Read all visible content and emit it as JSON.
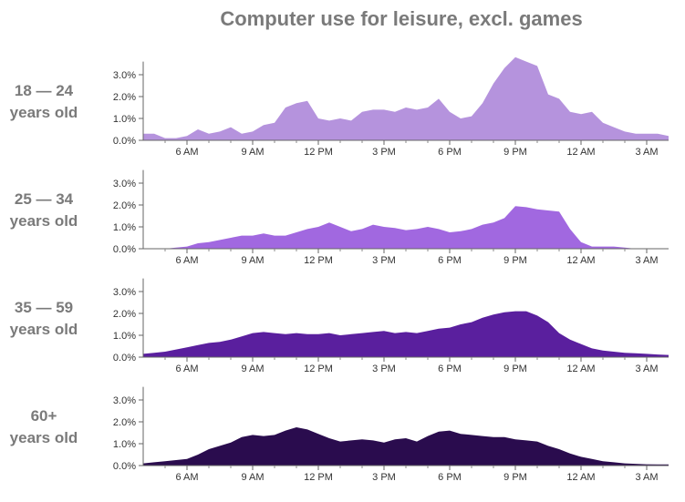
{
  "title": "Computer use for leisure, excl. games",
  "chart_data": {
    "type": "area",
    "title": "Computer use for leisure, excl. games",
    "x_start_label": "4 AM",
    "x_ticks": [
      "6 AM",
      "9 AM",
      "12 PM",
      "3 PM",
      "6 PM",
      "9 PM",
      "12 AM",
      "3 AM"
    ],
    "y_ticks": [
      "0.0%",
      "1.0%",
      "2.0%",
      "3.0%"
    ],
    "ylim": [
      0,
      4
    ],
    "x_range_hours": [
      4,
      28
    ],
    "grid": false,
    "colors": [
      "#b593dd",
      "#a168e0",
      "#5a1f9e",
      "#2a0c4e"
    ],
    "panels": [
      {
        "label_line1": "18 — 24",
        "label_line2": "years old",
        "x": [
          4,
          4.5,
          5,
          5.5,
          6,
          6.5,
          7,
          7.5,
          8,
          8.5,
          9,
          9.5,
          10,
          10.5,
          11,
          11.5,
          12,
          12.5,
          13,
          13.5,
          14,
          14.5,
          15,
          15.5,
          16,
          16.5,
          17,
          17.5,
          18,
          18.5,
          19,
          19.5,
          20,
          20.5,
          21,
          21.5,
          22,
          22.5,
          23,
          23.5,
          24,
          24.5,
          25,
          25.5,
          26,
          26.5,
          27,
          27.5,
          28
        ],
        "y": [
          0.3,
          0.3,
          0.1,
          0.1,
          0.2,
          0.5,
          0.3,
          0.4,
          0.6,
          0.3,
          0.4,
          0.7,
          0.8,
          1.5,
          1.7,
          1.8,
          1.0,
          0.9,
          1.0,
          0.9,
          1.3,
          1.4,
          1.4,
          1.3,
          1.5,
          1.4,
          1.5,
          1.9,
          1.3,
          1.0,
          1.1,
          1.7,
          2.6,
          3.3,
          3.8,
          3.6,
          3.4,
          2.1,
          1.9,
          1.3,
          1.2,
          1.3,
          0.8,
          0.6,
          0.4,
          0.3,
          0.3,
          0.3,
          0.2
        ]
      },
      {
        "label_line1": "25 — 34",
        "label_line2": "years old",
        "x": [
          4,
          4.5,
          5,
          5.5,
          6,
          6.5,
          7,
          7.5,
          8,
          8.5,
          9,
          9.5,
          10,
          10.5,
          11,
          11.5,
          12,
          12.5,
          13,
          13.5,
          14,
          14.5,
          15,
          15.5,
          16,
          16.5,
          17,
          17.5,
          18,
          18.5,
          19,
          19.5,
          20,
          20.5,
          21,
          21.5,
          22,
          22.5,
          23,
          23.5,
          24,
          24.5,
          25,
          25.5,
          26,
          26.5,
          27,
          27.5,
          28
        ],
        "y": [
          0.0,
          0.0,
          0.0,
          0.05,
          0.1,
          0.25,
          0.3,
          0.4,
          0.5,
          0.6,
          0.6,
          0.7,
          0.6,
          0.6,
          0.75,
          0.9,
          1.0,
          1.2,
          1.0,
          0.8,
          0.9,
          1.1,
          1.0,
          0.95,
          0.85,
          0.9,
          1.0,
          0.9,
          0.75,
          0.8,
          0.9,
          1.1,
          1.2,
          1.4,
          1.95,
          1.9,
          1.8,
          1.75,
          1.7,
          0.9,
          0.3,
          0.1,
          0.1,
          0.1,
          0.05,
          0.0,
          0.0,
          0.0,
          0.0
        ]
      },
      {
        "label_line1": "35 — 59",
        "label_line2": "years old",
        "x": [
          4,
          4.5,
          5,
          5.5,
          6,
          6.5,
          7,
          7.5,
          8,
          8.5,
          9,
          9.5,
          10,
          10.5,
          11,
          11.5,
          12,
          12.5,
          13,
          13.5,
          14,
          14.5,
          15,
          15.5,
          16,
          16.5,
          17,
          17.5,
          18,
          18.5,
          19,
          19.5,
          20,
          20.5,
          21,
          21.5,
          22,
          22.5,
          23,
          23.5,
          24,
          24.5,
          25,
          25.5,
          26,
          26.5,
          27,
          27.5,
          28
        ],
        "y": [
          0.15,
          0.2,
          0.25,
          0.35,
          0.45,
          0.55,
          0.65,
          0.7,
          0.8,
          0.95,
          1.1,
          1.15,
          1.1,
          1.05,
          1.1,
          1.05,
          1.05,
          1.1,
          1.0,
          1.05,
          1.1,
          1.15,
          1.2,
          1.1,
          1.15,
          1.1,
          1.2,
          1.3,
          1.35,
          1.5,
          1.6,
          1.8,
          1.95,
          2.05,
          2.1,
          2.1,
          1.9,
          1.6,
          1.1,
          0.8,
          0.6,
          0.4,
          0.3,
          0.25,
          0.2,
          0.18,
          0.15,
          0.12,
          0.1
        ]
      },
      {
        "label_line1": "60+",
        "label_line2": "years old",
        "x": [
          4,
          4.5,
          5,
          5.5,
          6,
          6.5,
          7,
          7.5,
          8,
          8.5,
          9,
          9.5,
          10,
          10.5,
          11,
          11.5,
          12,
          12.5,
          13,
          13.5,
          14,
          14.5,
          15,
          15.5,
          16,
          16.5,
          17,
          17.5,
          18,
          18.5,
          19,
          19.5,
          20,
          20.5,
          21,
          21.5,
          22,
          22.5,
          23,
          23.5,
          24,
          24.5,
          25,
          25.5,
          26,
          26.5,
          27,
          27.5,
          28
        ],
        "y": [
          0.1,
          0.15,
          0.2,
          0.25,
          0.3,
          0.5,
          0.75,
          0.9,
          1.05,
          1.3,
          1.4,
          1.35,
          1.4,
          1.6,
          1.75,
          1.65,
          1.45,
          1.25,
          1.1,
          1.15,
          1.2,
          1.15,
          1.05,
          1.2,
          1.25,
          1.1,
          1.35,
          1.55,
          1.6,
          1.45,
          1.4,
          1.35,
          1.3,
          1.3,
          1.2,
          1.15,
          1.1,
          0.9,
          0.75,
          0.55,
          0.4,
          0.3,
          0.2,
          0.15,
          0.1,
          0.08,
          0.06,
          0.05,
          0.05
        ]
      }
    ]
  }
}
